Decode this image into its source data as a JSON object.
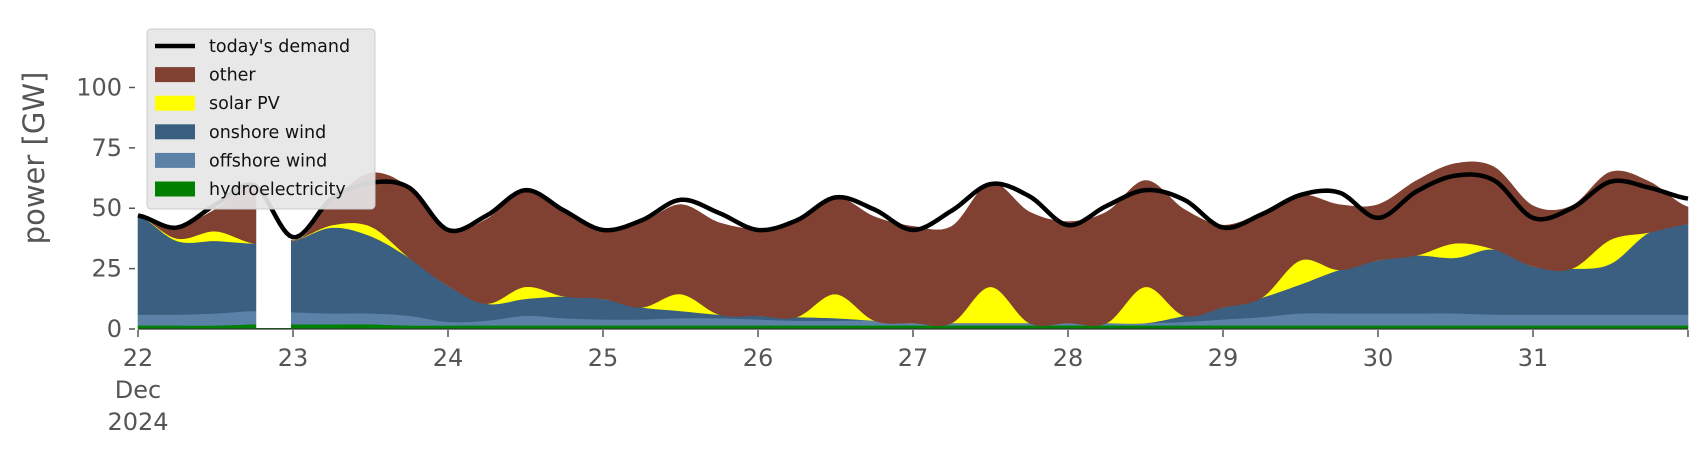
{
  "chart_data": {
    "type": "area",
    "stacked": true,
    "title": "",
    "xlabel": "",
    "ylabel": "power [GW]",
    "ylim": [
      0,
      118
    ],
    "xlim": [
      0,
      10
    ],
    "grid": false,
    "legend_position": "top-left",
    "yticks": [
      0,
      25,
      50,
      75,
      100
    ],
    "x_ticks": [
      {
        "x": 0,
        "lines": [
          "22",
          "Dec",
          "2024"
        ]
      },
      {
        "x": 1,
        "lines": [
          "23"
        ]
      },
      {
        "x": 2,
        "lines": [
          "24"
        ]
      },
      {
        "x": 3,
        "lines": [
          "25"
        ]
      },
      {
        "x": 4,
        "lines": [
          "26"
        ]
      },
      {
        "x": 5,
        "lines": [
          "27"
        ]
      },
      {
        "x": 6,
        "lines": [
          "28"
        ]
      },
      {
        "x": 7,
        "lines": [
          "29"
        ]
      },
      {
        "x": 8,
        "lines": [
          "30"
        ]
      },
      {
        "x": 9,
        "lines": [
          "31"
        ]
      },
      {
        "x": 10,
        "lines": [
          ""
        ]
      }
    ],
    "x": [
      0,
      0.25,
      0.5,
      0.75,
      1,
      1.25,
      1.5,
      1.75,
      2,
      2.25,
      2.5,
      2.75,
      3,
      3.25,
      3.5,
      3.75,
      4,
      4.25,
      4.5,
      4.75,
      5,
      5.25,
      5.5,
      5.75,
      6,
      6.25,
      6.5,
      6.75,
      7,
      7.25,
      7.5,
      7.75,
      8,
      8.25,
      8.5,
      8.75,
      9,
      9.25,
      9.5,
      9.75,
      10
    ],
    "series": [
      {
        "name": "hydroelectricity",
        "color": "#008000",
        "values": [
          1.5,
          1.5,
          1.5,
          2,
          2,
          2,
          2,
          1.5,
          1.5,
          1.5,
          1.5,
          1.5,
          1.5,
          1.5,
          1.5,
          1.5,
          1.5,
          1.5,
          1.5,
          1.5,
          1.5,
          1.5,
          1.5,
          1.5,
          1.5,
          1.5,
          1.5,
          1.5,
          1.5,
          1.5,
          1.5,
          1.5,
          1.5,
          1.5,
          1.5,
          1.5,
          1.5,
          1.5,
          1.5,
          1.5,
          1.5
        ]
      },
      {
        "name": "offshore wind",
        "color": "#5b81a7",
        "values": [
          4.5,
          4.5,
          5,
          5.5,
          5,
          4.5,
          4.5,
          4,
          1.5,
          2,
          4,
          3,
          2.5,
          2.5,
          3,
          3,
          2.5,
          2,
          2,
          2,
          1,
          1,
          1,
          1,
          1,
          1,
          1,
          1.5,
          2.5,
          3.5,
          5,
          5,
          5,
          5,
          5,
          4.5,
          4.5,
          4.5,
          4.5,
          4.5,
          4.5
        ]
      },
      {
        "name": "onshore wind",
        "color": "#3a5f80",
        "values": [
          41,
          30.5,
          30,
          28,
          29.5,
          35.5,
          32,
          24,
          15,
          7,
          7,
          9,
          8.5,
          5,
          3,
          1.5,
          1.5,
          1.5,
          1,
          0,
          0,
          0,
          0,
          0,
          0,
          0,
          0,
          2.5,
          5,
          8,
          12,
          18,
          22,
          24,
          23,
          27,
          20,
          19,
          21,
          34,
          37.5
        ]
      },
      {
        "name": "solar PV",
        "color": "#ffff00",
        "values": [
          0,
          1,
          4,
          0,
          0,
          1,
          4,
          0,
          0,
          0,
          5,
          0,
          0,
          0,
          7,
          0,
          0,
          0,
          10,
          0,
          0,
          0,
          15,
          0,
          0,
          0,
          15,
          0,
          0,
          0,
          10,
          0,
          0,
          0,
          6,
          0,
          0,
          0,
          10,
          0,
          0
        ]
      },
      {
        "name": "other",
        "color": "#814132",
        "values": [
          0,
          5,
          9,
          24,
          0,
          10,
          22,
          29,
          23,
          35,
          40,
          36,
          28,
          35,
          37,
          38,
          36,
          40,
          40,
          43,
          40,
          40,
          43,
          46,
          42,
          46,
          44,
          44,
          34,
          35,
          27,
          27,
          23,
          31,
          33,
          34,
          25,
          26,
          28,
          21,
          7
        ]
      }
    ],
    "demand": {
      "name": "today's demand",
      "color": "#000000",
      "values": [
        47,
        42,
        51.5,
        59.5,
        38,
        54,
        60.5,
        58.5,
        41,
        47,
        57.5,
        49,
        41,
        45,
        53.5,
        48,
        41,
        45,
        54.5,
        49.5,
        41,
        49,
        60,
        55,
        43,
        51,
        57.5,
        53.5,
        42,
        47.5,
        55.5,
        56.5,
        46,
        57,
        63.5,
        61.5,
        46,
        50,
        61,
        58.5,
        54
      ]
    },
    "gaps": [
      {
        "from": 0.75,
        "to": 1
      }
    ],
    "legend": [
      "today's demand",
      "other",
      "solar PV",
      "onshore wind",
      "offshore wind",
      "hydroelectricity"
    ]
  }
}
